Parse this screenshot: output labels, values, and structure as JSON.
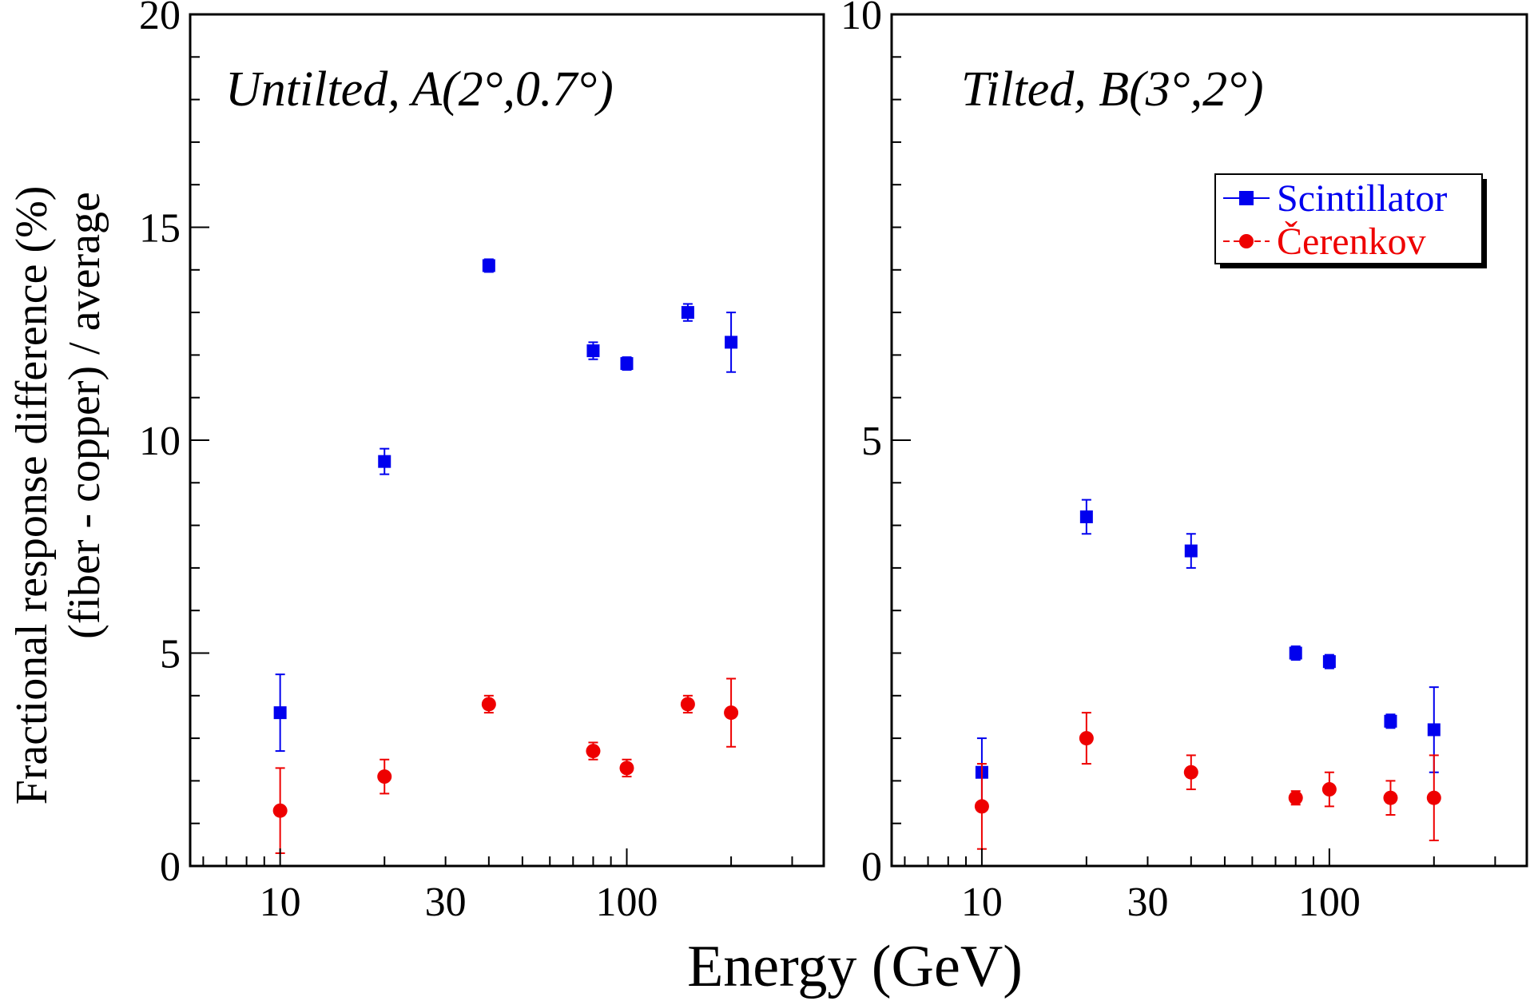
{
  "figure": {
    "xlabel": "Energy (GeV)",
    "ylabel_line1": "Fractional response difference (%)",
    "ylabel_line2": "(fiber - copper) / average"
  },
  "legend": {
    "scintillator_label": "Scintillator",
    "cerenkov_label": "Čerenkov"
  },
  "colors": {
    "scintillator": "#0000ee",
    "cerenkov": "#ee0000",
    "axis": "#000000"
  },
  "chart_data": [
    {
      "type": "scatter",
      "panel_label": "Untilted, A(2°,0.7°)",
      "xlabel": "Energy (GeV)",
      "ylabel": "Fractional response difference (%) (fiber - copper) / average",
      "xscale": "log",
      "xlim": [
        5.5,
        370
      ],
      "ylim": [
        0,
        20
      ],
      "x_ticks": [
        10,
        30,
        100
      ],
      "y_ticks": [
        0,
        5,
        10,
        15,
        20
      ],
      "legend": false,
      "series": [
        {
          "name": "Scintillator",
          "marker": "square",
          "x": [
            10,
            20,
            40,
            80,
            100,
            150,
            200
          ],
          "y": [
            3.6,
            9.5,
            14.1,
            12.1,
            11.8,
            13.0,
            12.3
          ],
          "yerr": [
            0.9,
            0.3,
            0.15,
            0.2,
            0.15,
            0.2,
            0.7
          ]
        },
        {
          "name": "Čerenkov",
          "marker": "circle",
          "x": [
            10,
            20,
            40,
            80,
            100,
            150,
            200
          ],
          "y": [
            1.3,
            2.1,
            3.8,
            2.7,
            2.3,
            3.8,
            3.6
          ],
          "yerr": [
            1.0,
            0.4,
            0.2,
            0.2,
            0.2,
            0.2,
            0.8
          ]
        }
      ]
    },
    {
      "type": "scatter",
      "panel_label": "Tilted, B(3°,2°)",
      "xlabel": "Energy (GeV)",
      "ylabel": "Fractional response difference (%) (fiber - copper) / average",
      "xscale": "log",
      "xlim": [
        5.5,
        370
      ],
      "ylim": [
        0,
        10
      ],
      "x_ticks": [
        10,
        30,
        100
      ],
      "y_ticks": [
        0,
        5,
        10
      ],
      "legend": true,
      "legend_position": "top-right",
      "series": [
        {
          "name": "Scintillator",
          "marker": "square",
          "x": [
            10,
            20,
            40,
            80,
            100,
            150,
            200
          ],
          "y": [
            1.1,
            4.1,
            3.7,
            2.5,
            2.4,
            1.7,
            1.6
          ],
          "yerr": [
            0.4,
            0.2,
            0.2,
            0.08,
            0.08,
            0.08,
            0.5
          ]
        },
        {
          "name": "Čerenkov",
          "marker": "circle",
          "x": [
            10,
            20,
            40,
            80,
            100,
            150,
            200
          ],
          "y": [
            0.7,
            1.5,
            1.1,
            0.8,
            0.9,
            0.8,
            0.8
          ],
          "yerr": [
            0.5,
            0.3,
            0.2,
            0.08,
            0.2,
            0.2,
            0.5
          ]
        }
      ]
    }
  ]
}
